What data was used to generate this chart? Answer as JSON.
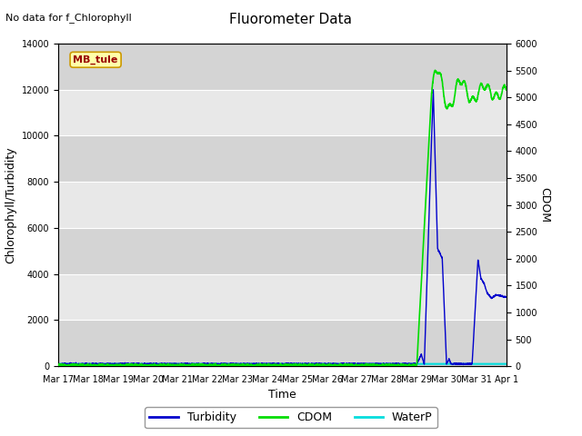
{
  "title": "Fluorometer Data",
  "subtitle": "No data for f_Chlorophyll",
  "station_label": "MB_tule",
  "xlabel": "Time",
  "ylabel_left": "Chlorophyll/Turbidity",
  "ylabel_right": "CDOM",
  "ylim_left": [
    0,
    14000
  ],
  "ylim_right": [
    0,
    6000
  ],
  "yticks_left": [
    0,
    2000,
    4000,
    6000,
    8000,
    10000,
    12000,
    14000
  ],
  "yticks_right": [
    0,
    500,
    1000,
    1500,
    2000,
    2500,
    3000,
    3500,
    4000,
    4500,
    5000,
    5500,
    6000
  ],
  "x_tick_labels": [
    "Mar 17",
    "Mar 18",
    "Mar 19",
    "Mar 20",
    "Mar 21",
    "Mar 22",
    "Mar 23",
    "Mar 24",
    "Mar 25",
    "Mar 26",
    "Mar 27",
    "Mar 28",
    "Mar 29",
    "Mar 30",
    "Mar 31",
    "Apr 1"
  ],
  "turbidity_color": "#0000cc",
  "cdom_color": "#00dd00",
  "waterp_color": "#00dddd",
  "legend_labels": [
    "Turbidity",
    "CDOM",
    "WaterP"
  ],
  "band_colors": [
    "#d4d4d4",
    "#e8e8e8"
  ]
}
